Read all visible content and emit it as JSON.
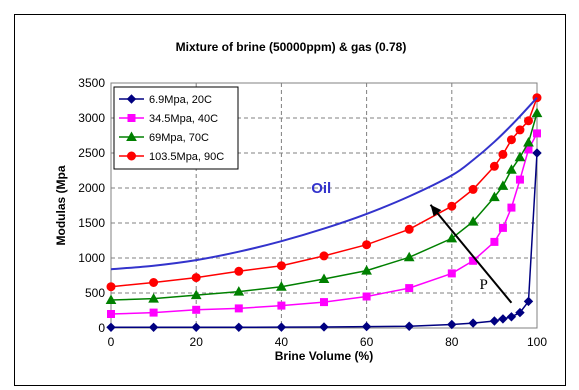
{
  "chart_data": {
    "type": "line",
    "title": "Mixture of brine (50000ppm) & gas (0.78)",
    "xlabel": "Brine Volume (%)",
    "ylabel": "Modulas (Mpa",
    "xlim": [
      0,
      100
    ],
    "ylim": [
      0,
      3500
    ],
    "xticks": [
      "0",
      "20",
      "40",
      "60",
      "80",
      "100"
    ],
    "yticks": [
      "0",
      "500",
      "1000",
      "1500",
      "2000",
      "2500",
      "3000",
      "3500"
    ],
    "grid": true,
    "legend_position": "top-left",
    "series": [
      {
        "name": "6.9Mpa, 20C",
        "color": "#000080",
        "marker": "diamond",
        "points": [
          [
            0,
            10
          ],
          [
            10,
            10
          ],
          [
            20,
            10
          ],
          [
            30,
            10
          ],
          [
            40,
            12
          ],
          [
            50,
            15
          ],
          [
            60,
            20
          ],
          [
            70,
            25
          ],
          [
            80,
            50
          ],
          [
            85,
            70
          ],
          [
            90,
            100
          ],
          [
            92,
            130
          ],
          [
            94,
            160
          ],
          [
            96,
            220
          ],
          [
            98,
            380
          ],
          [
            100,
            2500
          ]
        ]
      },
      {
        "name": "34.5Mpa, 40C",
        "color": "#ff00ff",
        "marker": "square",
        "points": [
          [
            0,
            200
          ],
          [
            10,
            220
          ],
          [
            20,
            260
          ],
          [
            30,
            280
          ],
          [
            40,
            320
          ],
          [
            50,
            370
          ],
          [
            60,
            450
          ],
          [
            70,
            570
          ],
          [
            80,
            780
          ],
          [
            85,
            960
          ],
          [
            90,
            1230
          ],
          [
            92,
            1430
          ],
          [
            94,
            1720
          ],
          [
            96,
            2120
          ],
          [
            98,
            2550
          ],
          [
            100,
            2780
          ]
        ]
      },
      {
        "name": "69Mpa, 70C",
        "color": "#008000",
        "marker": "triangle",
        "points": [
          [
            0,
            400
          ],
          [
            10,
            420
          ],
          [
            20,
            470
          ],
          [
            30,
            520
          ],
          [
            40,
            590
          ],
          [
            50,
            700
          ],
          [
            60,
            820
          ],
          [
            70,
            1010
          ],
          [
            80,
            1280
          ],
          [
            85,
            1520
          ],
          [
            90,
            1870
          ],
          [
            92,
            2030
          ],
          [
            94,
            2260
          ],
          [
            96,
            2440
          ],
          [
            98,
            2650
          ],
          [
            100,
            3070
          ]
        ]
      },
      {
        "name": "103.5Mpa, 90C",
        "color": "#ff0000",
        "marker": "circle",
        "points": [
          [
            0,
            590
          ],
          [
            10,
            650
          ],
          [
            20,
            720
          ],
          [
            30,
            810
          ],
          [
            40,
            890
          ],
          [
            50,
            1030
          ],
          [
            60,
            1190
          ],
          [
            70,
            1410
          ],
          [
            80,
            1740
          ],
          [
            85,
            1980
          ],
          [
            90,
            2310
          ],
          [
            92,
            2480
          ],
          [
            94,
            2690
          ],
          [
            96,
            2830
          ],
          [
            98,
            2960
          ],
          [
            100,
            3290
          ]
        ]
      },
      {
        "name": "Oil",
        "color": "#3333cc",
        "marker": "none",
        "points": [
          [
            0,
            840
          ],
          [
            10,
            890
          ],
          [
            20,
            970
          ],
          [
            30,
            1090
          ],
          [
            40,
            1240
          ],
          [
            50,
            1420
          ],
          [
            60,
            1630
          ],
          [
            70,
            1880
          ],
          [
            80,
            2180
          ],
          [
            85,
            2400
          ],
          [
            90,
            2660
          ],
          [
            95,
            2960
          ],
          [
            100,
            3290
          ]
        ]
      }
    ],
    "annotations": {
      "oil_label": "Oil",
      "arrow_label": "P"
    }
  }
}
